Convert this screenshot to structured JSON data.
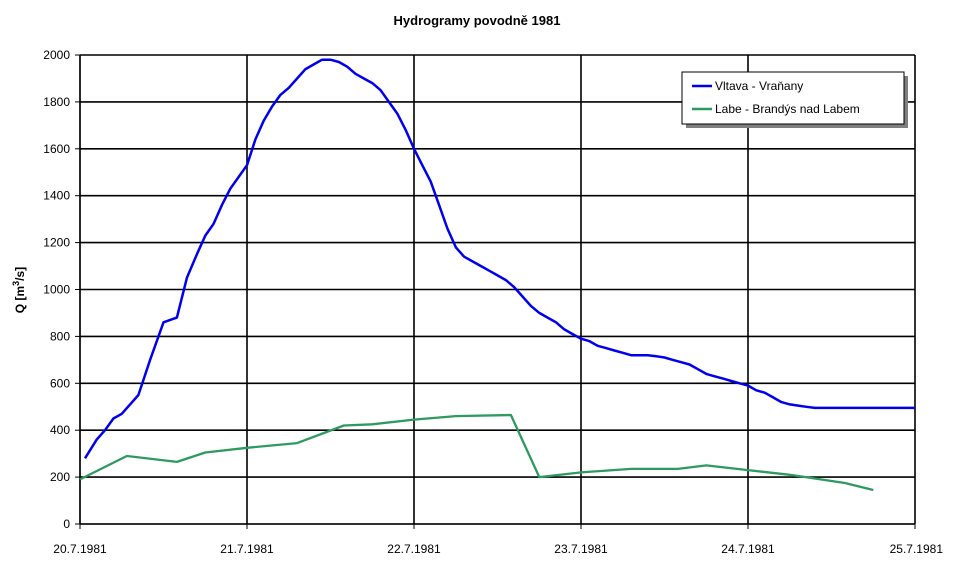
{
  "chart_data": {
    "type": "line",
    "title": "Hydrogramy povodně 1981",
    "ylabel_main": "Q [m",
    "ylabel_sup": "3",
    "ylabel_end": "/s]",
    "xlabel": "",
    "x_ticks": [
      "20.7.1981",
      "21.7.1981",
      "22.7.1981",
      "23.7.1981",
      "24.7.1981",
      "25.7.1981"
    ],
    "y_ticks": [
      "0",
      "200",
      "400",
      "600",
      "800",
      "1000",
      "1200",
      "1400",
      "1600",
      "1800",
      "2000"
    ],
    "xlim_days": [
      0,
      5
    ],
    "ylim": [
      0,
      2000
    ],
    "grid": true,
    "legend_position": "top-right",
    "series": [
      {
        "name": "Vltava - Vraňany",
        "color": "#0000ee",
        "x_days": [
          0.03,
          0.1,
          0.15,
          0.2,
          0.25,
          0.3,
          0.35,
          0.42,
          0.5,
          0.58,
          0.64,
          0.7,
          0.75,
          0.8,
          0.85,
          0.9,
          0.95,
          1.0,
          1.05,
          1.1,
          1.15,
          1.2,
          1.25,
          1.3,
          1.35,
          1.4,
          1.45,
          1.5,
          1.55,
          1.6,
          1.65,
          1.7,
          1.75,
          1.8,
          1.85,
          1.9,
          1.95,
          2.0,
          2.05,
          2.1,
          2.15,
          2.2,
          2.25,
          2.3,
          2.35,
          2.4,
          2.45,
          2.5,
          2.55,
          2.6,
          2.65,
          2.7,
          2.75,
          2.8,
          2.85,
          2.9,
          2.95,
          3.0,
          3.05,
          3.1,
          3.15,
          3.2,
          3.25,
          3.3,
          3.35,
          3.4,
          3.45,
          3.5,
          3.55,
          3.6,
          3.65,
          3.7,
          3.75,
          3.8,
          3.85,
          3.9,
          3.95,
          4.0,
          4.05,
          4.1,
          4.15,
          4.2,
          4.25,
          4.3,
          4.35,
          4.4,
          4.45,
          4.5,
          4.55,
          4.6,
          4.65,
          4.7,
          4.75,
          4.8,
          4.85,
          4.9,
          4.95,
          5.0
        ],
        "values": [
          280,
          360,
          400,
          450,
          470,
          510,
          550,
          700,
          860,
          880,
          1050,
          1150,
          1230,
          1280,
          1360,
          1430,
          1480,
          1530,
          1640,
          1720,
          1780,
          1830,
          1860,
          1900,
          1940,
          1960,
          1980,
          1980,
          1970,
          1950,
          1920,
          1900,
          1880,
          1850,
          1800,
          1750,
          1680,
          1600,
          1530,
          1460,
          1360,
          1260,
          1180,
          1140,
          1120,
          1100,
          1080,
          1060,
          1040,
          1010,
          970,
          930,
          900,
          880,
          860,
          830,
          810,
          790,
          780,
          760,
          750,
          740,
          730,
          720,
          720,
          720,
          715,
          710,
          700,
          690,
          680,
          660,
          640,
          630,
          620,
          610,
          600,
          590,
          570,
          560,
          540,
          520,
          510,
          505,
          500,
          495,
          495,
          495,
          495,
          495,
          495,
          495,
          495,
          495,
          495,
          495,
          495,
          495
        ]
      },
      {
        "name": "Labe - Brandýs nad Labem",
        "color": "#2e9960",
        "x_days": [
          0,
          0.28,
          0.58,
          0.75,
          1.0,
          1.3,
          1.58,
          1.75,
          2.0,
          2.25,
          2.58,
          2.75,
          3.0,
          3.3,
          3.58,
          3.75,
          4.0,
          4.25,
          4.58,
          4.75
        ],
        "values": [
          190,
          290,
          265,
          305,
          325,
          345,
          420,
          425,
          445,
          460,
          465,
          200,
          220,
          235,
          235,
          250,
          230,
          210,
          175,
          145
        ]
      }
    ]
  }
}
